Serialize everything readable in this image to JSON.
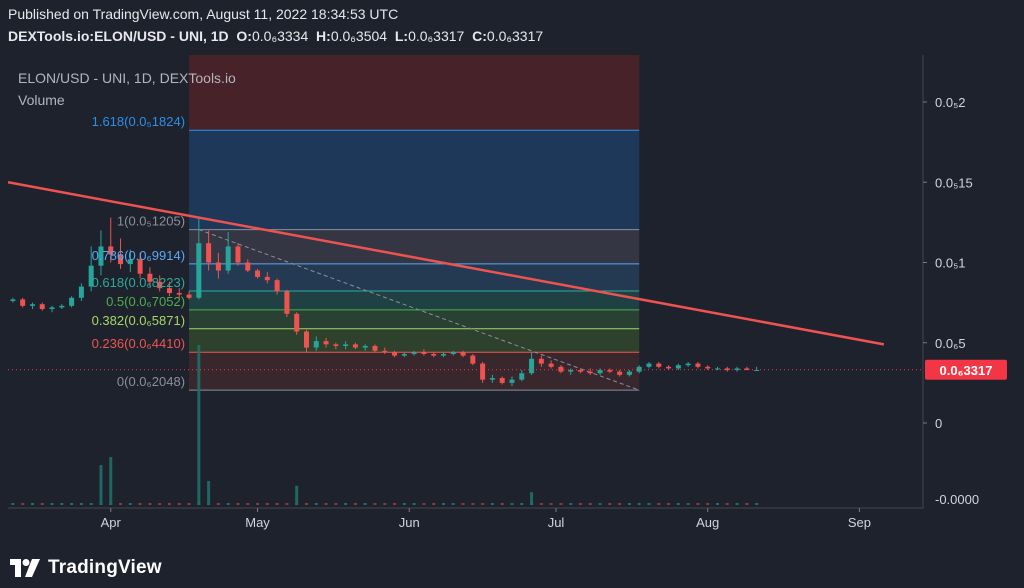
{
  "header": {
    "published": "Published on TradingView.com, August 11, 2022 18:34:53 UTC",
    "symbol": "DEXTools.io:ELON/USD - UNI, 1D",
    "ohlc": [
      {
        "label": "O:",
        "value": "0.0₆3334"
      },
      {
        "label": "H:",
        "value": "0.0₆3504"
      },
      {
        "label": "L:",
        "value": "0.0₆3317"
      },
      {
        "label": "C:",
        "value": "0.0₆3317"
      }
    ]
  },
  "legend": {
    "title": "ELON/USD - UNI, 1D, DEXTools.io",
    "volume": "Volume"
  },
  "price_axis": {
    "labels": [
      {
        "text": "0.0₅2",
        "value": 2e-05
      },
      {
        "text": "0.0₅15",
        "value": 1.5e-05
      },
      {
        "text": "0.0₅1",
        "value": 1e-05
      },
      {
        "text": "0.0₆5",
        "value": 5e-06
      },
      {
        "text": "0",
        "value": 0
      }
    ],
    "volume_label": "-0.0000",
    "last_price": "0.0₆3317",
    "last_price_value": 3.317e-06,
    "last_price_color": "#f23645"
  },
  "time_axis": [
    "Apr",
    "May",
    "Jun",
    "Jul",
    "Aug",
    "Sep"
  ],
  "fibonacci": [
    {
      "label": "1.618(0.0₅1824)",
      "value": 1.824e-05,
      "color": "#2e8fe8"
    },
    {
      "label": "1(0.0₅1205)",
      "value": 1.205e-05,
      "color": "#8c8f99"
    },
    {
      "label": "0.786(0.0₆9914)",
      "value": 9.914e-06,
      "color": "#5ba8f5"
    },
    {
      "label": "0.618(0.0₆8223)",
      "value": 8.223e-06,
      "color": "#2fa99b"
    },
    {
      "label": "0.5(0.0₆7052)",
      "value": 7.052e-06,
      "color": "#4caf50"
    },
    {
      "label": "0.382(0.0₆5871)",
      "value": 5.871e-06,
      "color": "#a5d66a"
    },
    {
      "label": "0.236(0.0₆4410)",
      "value": 4.41e-06,
      "color": "#f0544f"
    },
    {
      "label": "0(0.0₆2048)",
      "value": 2.048e-06,
      "color": "#8c8f99"
    }
  ],
  "colors": {
    "up": "#26a69a",
    "down": "#ef5350",
    "trendline": "#ef5350",
    "fib_top_zone": "#4a2329",
    "fib_upper_zone": "#1f3a5c",
    "fib_red_zone": "#4a2329",
    "background": "#1e222d"
  },
  "chart_data": {
    "type": "candlestick",
    "title": "ELON/USD - UNI, 1D, DEXTools.io",
    "y_range": [
      0,
      2.3e-05
    ],
    "x_range": [
      "2022-03-11",
      "2022-09-14"
    ],
    "candles": [
      {
        "t": "2022-03-12",
        "o": 7.6e-06,
        "h": 7.8e-06,
        "l": 7.5e-06,
        "c": 7.7e-06
      },
      {
        "t": "2022-03-14",
        "o": 7.7e-06,
        "h": 7.8e-06,
        "l": 7.2e-06,
        "c": 7.3e-06
      },
      {
        "t": "2022-03-16",
        "o": 7.3e-06,
        "h": 7.5e-06,
        "l": 7.1e-06,
        "c": 7.4e-06
      },
      {
        "t": "2022-03-18",
        "o": 7.4e-06,
        "h": 7.5e-06,
        "l": 7e-06,
        "c": 7.1e-06
      },
      {
        "t": "2022-03-20",
        "o": 7.1e-06,
        "h": 7.3e-06,
        "l": 6.9e-06,
        "c": 7.2e-06
      },
      {
        "t": "2022-03-22",
        "o": 7.2e-06,
        "h": 7.4e-06,
        "l": 7.1e-06,
        "c": 7.3e-06
      },
      {
        "t": "2022-03-24",
        "o": 7.3e-06,
        "h": 7.9e-06,
        "l": 7.2e-06,
        "c": 7.8e-06
      },
      {
        "t": "2022-03-26",
        "o": 7.8e-06,
        "h": 8.7e-06,
        "l": 7.6e-06,
        "c": 8.5e-06
      },
      {
        "t": "2022-03-28",
        "o": 8.5e-06,
        "h": 1.1e-05,
        "l": 8.2e-06,
        "c": 9.8e-06
      },
      {
        "t": "2022-03-30",
        "o": 9.8e-06,
        "h": 1.2e-05,
        "l": 9.2e-06,
        "c": 1.1e-05
      },
      {
        "t": "2022-04-01",
        "o": 1.1e-05,
        "h": 1.28e-05,
        "l": 1e-05,
        "c": 1.05e-05
      },
      {
        "t": "2022-04-03",
        "o": 1.05e-05,
        "h": 1.15e-05,
        "l": 9.6e-06,
        "c": 9.9e-06
      },
      {
        "t": "2022-04-05",
        "o": 9.9e-06,
        "h": 1.08e-05,
        "l": 9.4e-06,
        "c": 1.02e-05
      },
      {
        "t": "2022-04-07",
        "o": 1.02e-05,
        "h": 1.06e-05,
        "l": 9e-06,
        "c": 9.3e-06
      },
      {
        "t": "2022-04-09",
        "o": 9.3e-06,
        "h": 9.7e-06,
        "l": 8.5e-06,
        "c": 8.8e-06
      },
      {
        "t": "2022-04-11",
        "o": 8.8e-06,
        "h": 9.2e-06,
        "l": 8.2e-06,
        "c": 8.4e-06
      },
      {
        "t": "2022-04-13",
        "o": 8.4e-06,
        "h": 8.8e-06,
        "l": 7.9e-06,
        "c": 8.1e-06
      },
      {
        "t": "2022-04-15",
        "o": 8.1e-06,
        "h": 8.4e-06,
        "l": 7.8e-06,
        "c": 8e-06
      },
      {
        "t": "2022-04-17",
        "o": 8e-06,
        "h": 8.2e-06,
        "l": 7.7e-06,
        "c": 7.8e-06
      },
      {
        "t": "2022-04-19",
        "o": 7.8e-06,
        "h": 1.28e-05,
        "l": 7.7e-06,
        "c": 1.12e-05
      },
      {
        "t": "2022-04-21",
        "o": 1.12e-05,
        "h": 1.2e-05,
        "l": 9.5e-06,
        "c": 1e-05
      },
      {
        "t": "2022-04-23",
        "o": 1e-05,
        "h": 1.06e-05,
        "l": 9e-06,
        "c": 9.5e-06
      },
      {
        "t": "2022-04-25",
        "o": 9.5e-06,
        "h": 1.19e-05,
        "l": 9.3e-06,
        "c": 1.1e-05
      },
      {
        "t": "2022-04-27",
        "o": 1.1e-05,
        "h": 1.12e-05,
        "l": 9.8e-06,
        "c": 1e-05
      },
      {
        "t": "2022-04-29",
        "o": 1e-05,
        "h": 1.02e-05,
        "l": 9.4e-06,
        "c": 9.5e-06
      },
      {
        "t": "2022-05-01",
        "o": 9.5e-06,
        "h": 9.6e-06,
        "l": 9e-06,
        "c": 9.1e-06
      },
      {
        "t": "2022-05-03",
        "o": 9.1e-06,
        "h": 9.4e-06,
        "l": 8.7e-06,
        "c": 8.9e-06
      },
      {
        "t": "2022-05-05",
        "o": 8.9e-06,
        "h": 9e-06,
        "l": 8e-06,
        "c": 8.2e-06
      },
      {
        "t": "2022-05-07",
        "o": 8.2e-06,
        "h": 8.3e-06,
        "l": 6.6e-06,
        "c": 6.8e-06
      },
      {
        "t": "2022-05-09",
        "o": 6.8e-06,
        "h": 6.9e-06,
        "l": 5.5e-06,
        "c": 5.7e-06
      },
      {
        "t": "2022-05-11",
        "o": 5.7e-06,
        "h": 5.8e-06,
        "l": 4.4e-06,
        "c": 4.7e-06
      },
      {
        "t": "2022-05-13",
        "o": 4.7e-06,
        "h": 5.4e-06,
        "l": 4.5e-06,
        "c": 5.1e-06
      },
      {
        "t": "2022-05-15",
        "o": 5.1e-06,
        "h": 5.3e-06,
        "l": 4.7e-06,
        "c": 4.9e-06
      },
      {
        "t": "2022-05-17",
        "o": 4.9e-06,
        "h": 5e-06,
        "l": 4.6e-06,
        "c": 4.8e-06
      },
      {
        "t": "2022-05-19",
        "o": 4.8e-06,
        "h": 5.1e-06,
        "l": 4.6e-06,
        "c": 4.9e-06
      },
      {
        "t": "2022-05-21",
        "o": 4.9e-06,
        "h": 5e-06,
        "l": 4.6e-06,
        "c": 4.7e-06
      },
      {
        "t": "2022-05-23",
        "o": 4.7e-06,
        "h": 4.9e-06,
        "l": 4.5e-06,
        "c": 4.8e-06
      },
      {
        "t": "2022-05-25",
        "o": 4.8e-06,
        "h": 4.9e-06,
        "l": 4.4e-06,
        "c": 4.5e-06
      },
      {
        "t": "2022-05-27",
        "o": 4.5e-06,
        "h": 4.7e-06,
        "l": 4.3e-06,
        "c": 4.4e-06
      },
      {
        "t": "2022-05-29",
        "o": 4.4e-06,
        "h": 4.5e-06,
        "l": 4.1e-06,
        "c": 4.2e-06
      },
      {
        "t": "2022-05-31",
        "o": 4.2e-06,
        "h": 4.4e-06,
        "l": 4.1e-06,
        "c": 4.3e-06
      },
      {
        "t": "2022-06-02",
        "o": 4.3e-06,
        "h": 4.5e-06,
        "l": 4.2e-06,
        "c": 4.4e-06
      },
      {
        "t": "2022-06-04",
        "o": 4.4e-06,
        "h": 4.6e-06,
        "l": 4.2e-06,
        "c": 4.3e-06
      },
      {
        "t": "2022-06-06",
        "o": 4.3e-06,
        "h": 4.4e-06,
        "l": 4.1e-06,
        "c": 4.2e-06
      },
      {
        "t": "2022-06-08",
        "o": 4.2e-06,
        "h": 4.4e-06,
        "l": 4.1e-06,
        "c": 4.3e-06
      },
      {
        "t": "2022-06-10",
        "o": 4.3e-06,
        "h": 4.5e-06,
        "l": 4.2e-06,
        "c": 4.4e-06
      },
      {
        "t": "2022-06-12",
        "o": 4.4e-06,
        "h": 4.5e-06,
        "l": 4.1e-06,
        "c": 4.2e-06
      },
      {
        "t": "2022-06-14",
        "o": 4.2e-06,
        "h": 4.3e-06,
        "l": 3.6e-06,
        "c": 3.7e-06
      },
      {
        "t": "2022-06-16",
        "o": 3.7e-06,
        "h": 3.8e-06,
        "l": 2.5e-06,
        "c": 2.7e-06
      },
      {
        "t": "2022-06-18",
        "o": 2.7e-06,
        "h": 3e-06,
        "l": 2.5e-06,
        "c": 2.8e-06
      },
      {
        "t": "2022-06-20",
        "o": 2.8e-06,
        "h": 2.9e-06,
        "l": 2.4e-06,
        "c": 2.5e-06
      },
      {
        "t": "2022-06-22",
        "o": 2.5e-06,
        "h": 2.9e-06,
        "l": 2.3e-06,
        "c": 2.7e-06
      },
      {
        "t": "2022-06-24",
        "o": 2.7e-06,
        "h": 3.3e-06,
        "l": 2.6e-06,
        "c": 3.1e-06
      },
      {
        "t": "2022-06-26",
        "o": 3.1e-06,
        "h": 4.4e-06,
        "l": 3e-06,
        "c": 4e-06
      },
      {
        "t": "2022-06-28",
        "o": 4e-06,
        "h": 4.2e-06,
        "l": 3.5e-06,
        "c": 3.7e-06
      },
      {
        "t": "2022-06-30",
        "o": 3.7e-06,
        "h": 3.9e-06,
        "l": 3.4e-06,
        "c": 3.5e-06
      },
      {
        "t": "2022-07-02",
        "o": 3.5e-06,
        "h": 3.6e-06,
        "l": 3.1e-06,
        "c": 3.2e-06
      },
      {
        "t": "2022-07-04",
        "o": 3.2e-06,
        "h": 3.4e-06,
        "l": 3e-06,
        "c": 3.3e-06
      },
      {
        "t": "2022-07-06",
        "o": 3.3e-06,
        "h": 3.4e-06,
        "l": 3.1e-06,
        "c": 3.2e-06
      },
      {
        "t": "2022-07-08",
        "o": 3.2e-06,
        "h": 3.4e-06,
        "l": 3e-06,
        "c": 3.1e-06
      },
      {
        "t": "2022-07-10",
        "o": 3.1e-06,
        "h": 3.4e-06,
        "l": 3e-06,
        "c": 3.3e-06
      },
      {
        "t": "2022-07-12",
        "o": 3.3e-06,
        "h": 3.4e-06,
        "l": 3.1e-06,
        "c": 3.2e-06
      },
      {
        "t": "2022-07-14",
        "o": 3.2e-06,
        "h": 3.3e-06,
        "l": 2.9e-06,
        "c": 3e-06
      },
      {
        "t": "2022-07-16",
        "o": 3e-06,
        "h": 3.3e-06,
        "l": 2.9e-06,
        "c": 3.2e-06
      },
      {
        "t": "2022-07-18",
        "o": 3.2e-06,
        "h": 3.6e-06,
        "l": 3.1e-06,
        "c": 3.5e-06
      },
      {
        "t": "2022-07-20",
        "o": 3.5e-06,
        "h": 3.8e-06,
        "l": 3.4e-06,
        "c": 3.7e-06
      },
      {
        "t": "2022-07-22",
        "o": 3.7e-06,
        "h": 3.8e-06,
        "l": 3.4e-06,
        "c": 3.5e-06
      },
      {
        "t": "2022-07-24",
        "o": 3.5e-06,
        "h": 3.6e-06,
        "l": 3.3e-06,
        "c": 3.4e-06
      },
      {
        "t": "2022-07-26",
        "o": 3.4e-06,
        "h": 3.7e-06,
        "l": 3.3e-06,
        "c": 3.6e-06
      },
      {
        "t": "2022-07-28",
        "o": 3.6e-06,
        "h": 3.8e-06,
        "l": 3.5e-06,
        "c": 3.7e-06
      },
      {
        "t": "2022-07-30",
        "o": 3.7e-06,
        "h": 3.8e-06,
        "l": 3.4e-06,
        "c": 3.5e-06
      },
      {
        "t": "2022-08-01",
        "o": 3.5e-06,
        "h": 3.6e-06,
        "l": 3.3e-06,
        "c": 3.4e-06
      },
      {
        "t": "2022-08-03",
        "o": 3.4e-06,
        "h": 3.5e-06,
        "l": 3.3e-06,
        "c": 3.4e-06
      },
      {
        "t": "2022-08-05",
        "o": 3.4e-06,
        "h": 3.5e-06,
        "l": 3.2e-06,
        "c": 3.3e-06
      },
      {
        "t": "2022-08-07",
        "o": 3.3e-06,
        "h": 3.5e-06,
        "l": 3.2e-06,
        "c": 3.4e-06
      },
      {
        "t": "2022-08-09",
        "o": 3.4e-06,
        "h": 3.5e-06,
        "l": 3.3e-06,
        "c": 3.3e-06
      },
      {
        "t": "2022-08-11",
        "o": 3.3e-06,
        "h": 3.5e-06,
        "l": 3.3e-06,
        "c": 3.3e-06
      }
    ],
    "volume_spikes": [
      {
        "t": "2022-03-30",
        "v": 0.25
      },
      {
        "t": "2022-04-01",
        "v": 0.3
      },
      {
        "t": "2022-04-19",
        "v": 1.0
      },
      {
        "t": "2022-04-21",
        "v": 0.15
      },
      {
        "t": "2022-05-09",
        "v": 0.12
      },
      {
        "t": "2022-06-26",
        "v": 0.08
      }
    ],
    "trendline": [
      {
        "t": "2022-03-11",
        "price": 1.5e-05
      },
      {
        "t": "2022-09-06",
        "price": 4.9e-06
      }
    ],
    "fib_box": {
      "start": "2022-04-17",
      "end": "2022-07-18"
    },
    "fib_diagonal": [
      {
        "t": "2022-04-19",
        "price": 1.205e-05
      },
      {
        "t": "2022-07-18",
        "price": 2.048e-06
      }
    ]
  }
}
